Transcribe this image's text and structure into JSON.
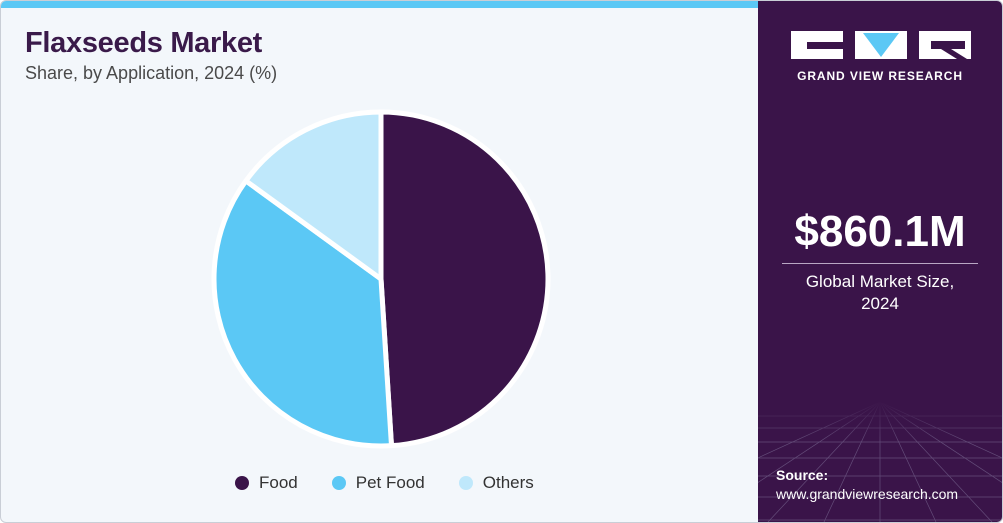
{
  "header": {
    "title": "Flaxseeds Market",
    "subtitle": "Share, by Application, 2024 (%)"
  },
  "chart_data": {
    "type": "pie",
    "categories": [
      "Food",
      "Pet Food",
      "Others"
    ],
    "values": [
      49,
      36,
      15
    ],
    "colors": [
      "#3a1449",
      "#5bc8f5",
      "#bfe8fb"
    ],
    "start": "12 o'clock",
    "direction": "clockwise",
    "legend_position": "bottom"
  },
  "sidebar": {
    "brand": "GRAND VIEW RESEARCH",
    "market_size": "$860.1M",
    "market_label": "Global Market Size, 2024",
    "source_title": "Source:",
    "source_url": "www.grandviewresearch.com",
    "colors": {
      "background": "#3a1449",
      "accent": "#5bc8f5"
    }
  }
}
